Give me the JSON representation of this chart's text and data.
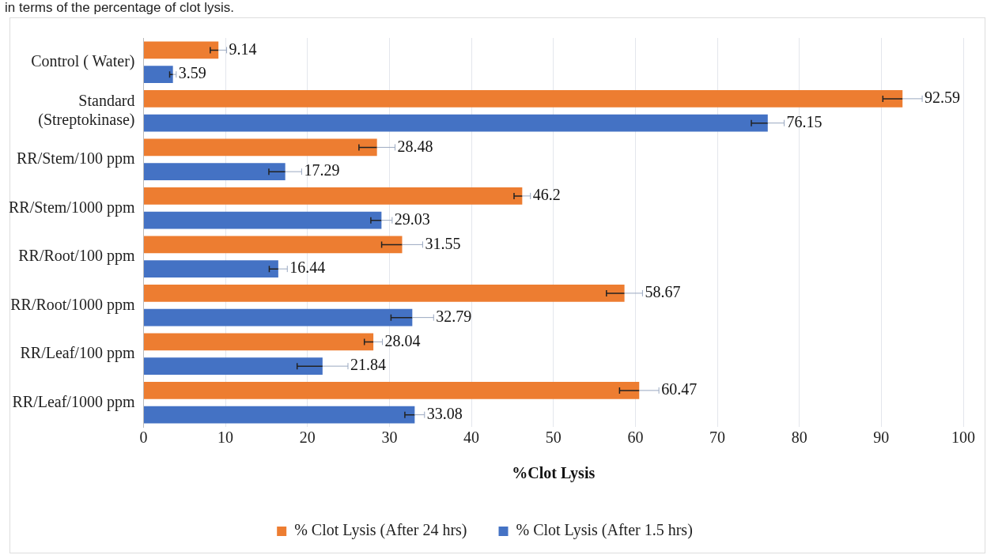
{
  "chart_data": {
    "type": "bar",
    "orientation": "horizontal",
    "categories": [
      "Control ( Water)",
      "Standard (Streptokinase)",
      "RR/Stem/100 ppm",
      "RR/Stem/1000 ppm",
      "RR/Root/100 ppm",
      "RR/Root/1000 ppm",
      "RR/Leaf/100 ppm",
      "RR/Leaf/1000 ppm"
    ],
    "series": [
      {
        "name": "% Clot Lysis (After 24 hrs)",
        "color": "#ed7d31",
        "values": [
          9.14,
          92.59,
          28.48,
          46.2,
          31.55,
          58.67,
          28.04,
          60.47
        ],
        "errors": [
          1.0,
          2.4,
          2.2,
          1.0,
          2.5,
          2.2,
          1.1,
          2.4
        ]
      },
      {
        "name": "% Clot Lysis (After 1.5 hrs)",
        "color": "#4472c4",
        "values": [
          3.59,
          76.15,
          17.29,
          29.03,
          16.44,
          32.79,
          21.84,
          33.08
        ],
        "errors": [
          0.4,
          2.0,
          2.0,
          1.3,
          1.1,
          2.6,
          3.1,
          1.2
        ]
      }
    ],
    "xlabel": "%Clot Lysis",
    "xlim": [
      0,
      100
    ],
    "xticks": [
      0,
      10,
      20,
      30,
      40,
      50,
      60,
      70,
      80,
      90,
      100
    ],
    "grid": "x",
    "legend": "bottom",
    "data_labels": true,
    "annotations": [
      "in terms of the percentage of clot lysis."
    ]
  }
}
